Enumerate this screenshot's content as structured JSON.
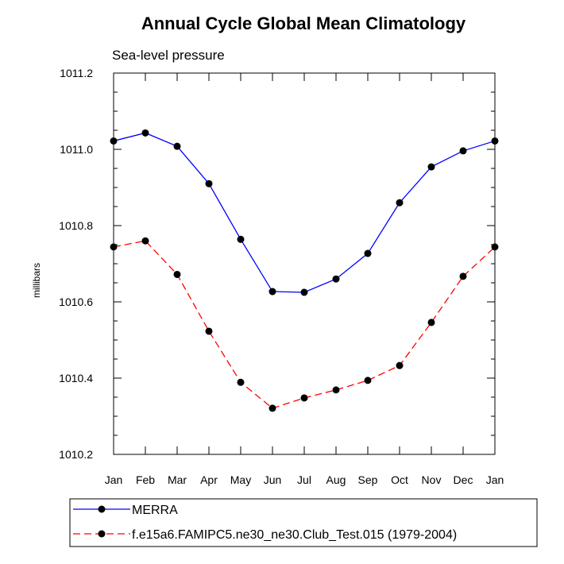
{
  "chart_data": {
    "type": "line",
    "title": "Annual Cycle Global Mean Climatology",
    "subtitle": "Sea-level pressure",
    "ylabel": "millibars",
    "xlabel": "",
    "ylim": [
      1010.2,
      1011.2
    ],
    "yticks": [
      1010.2,
      1010.4,
      1010.6,
      1010.8,
      1011.0,
      1011.2
    ],
    "ytick_labels": [
      "1010.2",
      "1010.4",
      "1010.6",
      "1010.8",
      "1011.0",
      "1011.2"
    ],
    "categories": [
      "Jan",
      "Feb",
      "Mar",
      "Apr",
      "May",
      "Jun",
      "Jul",
      "Aug",
      "Sep",
      "Oct",
      "Nov",
      "Dec",
      "Jan"
    ],
    "grid": false,
    "legend_position": "bottom",
    "series": [
      {
        "name": "MERRA",
        "color": "#0000ff",
        "dashed": false,
        "values": [
          1011.022,
          1011.043,
          1011.008,
          1010.91,
          1010.764,
          1010.627,
          1010.625,
          1010.66,
          1010.727,
          1010.86,
          1010.954,
          1010.996,
          1011.022
        ]
      },
      {
        "name": "f.e15a6.FAMIPC5.ne30_ne30.Club_Test.015 (1979-2004)",
        "color": "#ff0000",
        "dashed": true,
        "values": [
          1010.744,
          1010.76,
          1010.672,
          1010.523,
          1010.389,
          1010.321,
          1010.348,
          1010.369,
          1010.394,
          1010.433,
          1010.546,
          1010.667,
          1010.744
        ]
      }
    ]
  }
}
